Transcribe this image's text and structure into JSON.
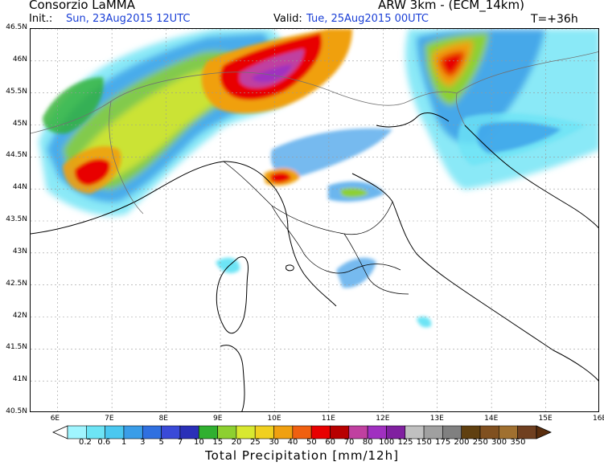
{
  "header": {
    "org": "Consorzio LaMMA",
    "model": "ARW 3km - (ECM_14km)",
    "init_label": "Init.:",
    "init_value": "Sun, 23Aug2015 12UTC",
    "valid_label": "Valid:",
    "valid_value": "Tue, 25Aug2015 00UTC",
    "lead": "T=+36h"
  },
  "map": {
    "lat_labels": [
      "46.5N",
      "46N",
      "45.5N",
      "45N",
      "44.5N",
      "44N",
      "43.5N",
      "43N",
      "42.5N",
      "42N",
      "41.5N",
      "41N",
      "40.5N"
    ],
    "lon_labels": [
      "6E",
      "7E",
      "8E",
      "9E",
      "10E",
      "11E",
      "12E",
      "13E",
      "14E",
      "15E",
      "16E"
    ],
    "lat_range": [
      40.5,
      46.5
    ],
    "lon_range": [
      5.5,
      16
    ],
    "grid": true
  },
  "colorbar": {
    "title": "Total Precipitation [mm/12h]",
    "labels": [
      "0.2",
      "0.6",
      "1",
      "3",
      "5",
      "7",
      "10",
      "15",
      "20",
      "25",
      "30",
      "40",
      "50",
      "60",
      "70",
      "80",
      "100",
      "125",
      "150",
      "175",
      "200",
      "250",
      "300",
      "350"
    ],
    "colors": [
      "#a0f5ff",
      "#6de4f5",
      "#4ac8f0",
      "#3a9de8",
      "#3070e0",
      "#3a4ad8",
      "#2a30b8",
      "#30b030",
      "#8dd030",
      "#d8e830",
      "#f0d020",
      "#f0a010",
      "#f06010",
      "#e80000",
      "#b80000",
      "#c040a0",
      "#a030c0",
      "#8020a0",
      "#c0c0c0",
      "#a0a0a0",
      "#808080",
      "#604010",
      "#805020",
      "#a07030",
      "#704020"
    ]
  }
}
